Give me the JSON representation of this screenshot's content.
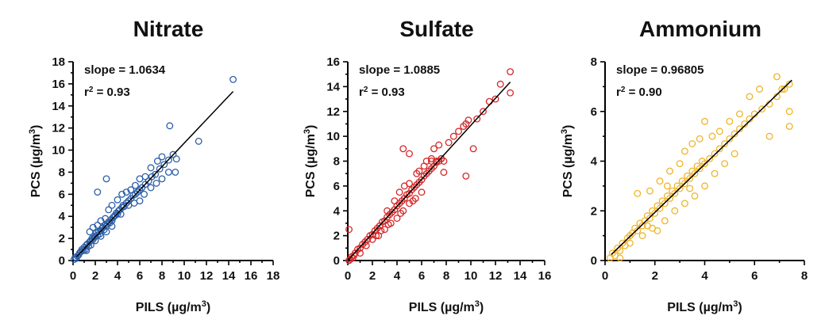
{
  "chart_data": [
    {
      "type": "scatter",
      "title": "Nitrate",
      "xlabel": "PILS (µg/m",
      "xlabel_sup": "3",
      "xlabel_close": ")",
      "ylabel": "PCS (µg/m",
      "ylabel_sup": "3",
      "ylabel_close": ")",
      "xlim": [
        0,
        18
      ],
      "ylim": [
        0,
        18
      ],
      "xticks": [
        0,
        2,
        4,
        6,
        8,
        10,
        12,
        14,
        16,
        18
      ],
      "yticks": [
        0,
        2,
        4,
        6,
        8,
        10,
        12,
        14,
        16,
        18
      ],
      "color": "#2d5fa8",
      "annotation": {
        "slope_text": "slope = 1.0634",
        "r2_prefix": "r",
        "r2_sup": "2",
        "r2_value": " = 0.93"
      },
      "fit": {
        "slope": 1.0634,
        "x_range": [
          0.3,
          14.4
        ]
      },
      "points": [
        [
          0.1,
          0.1
        ],
        [
          0.2,
          0.3
        ],
        [
          0.3,
          0.2
        ],
        [
          0.4,
          0.4
        ],
        [
          0.5,
          0.5
        ],
        [
          0.6,
          0.7
        ],
        [
          0.7,
          0.8
        ],
        [
          0.8,
          1.0
        ],
        [
          0.9,
          0.9
        ],
        [
          1.0,
          1.2
        ],
        [
          1.1,
          1.0
        ],
        [
          1.2,
          1.4
        ],
        [
          1.3,
          1.5
        ],
        [
          1.4,
          1.3
        ],
        [
          1.5,
          1.7
        ],
        [
          1.6,
          1.8
        ],
        [
          1.7,
          2.0
        ],
        [
          1.8,
          1.9
        ],
        [
          1.9,
          2.1
        ],
        [
          2.0,
          2.2
        ],
        [
          2.1,
          2.5
        ],
        [
          2.2,
          2.3
        ],
        [
          2.3,
          2.6
        ],
        [
          2.4,
          2.4
        ],
        [
          2.5,
          2.7
        ],
        [
          2.6,
          2.9
        ],
        [
          2.7,
          3.0
        ],
        [
          2.8,
          2.8
        ],
        [
          2.9,
          3.2
        ],
        [
          3.0,
          3.1
        ],
        [
          3.1,
          3.3
        ],
        [
          3.2,
          3.5
        ],
        [
          3.3,
          3.4
        ],
        [
          3.4,
          3.7
        ],
        [
          3.5,
          3.6
        ],
        [
          3.6,
          3.9
        ],
        [
          3.7,
          4.0
        ],
        [
          3.8,
          4.1
        ],
        [
          3.9,
          4.3
        ],
        [
          4.0,
          4.2
        ],
        [
          4.1,
          4.5
        ],
        [
          4.2,
          4.6
        ],
        [
          4.4,
          4.8
        ],
        [
          4.5,
          5.0
        ],
        [
          4.6,
          4.9
        ],
        [
          4.8,
          5.2
        ],
        [
          5.0,
          5.4
        ],
        [
          5.2,
          5.6
        ],
        [
          5.4,
          5.9
        ],
        [
          5.6,
          6.0
        ],
        [
          5.8,
          6.2
        ],
        [
          6.0,
          6.4
        ],
        [
          6.2,
          6.6
        ],
        [
          6.5,
          6.9
        ],
        [
          6.8,
          7.2
        ],
        [
          7.1,
          7.6
        ],
        [
          7.4,
          7.8
        ],
        [
          7.8,
          8.3
        ],
        [
          8.2,
          8.7
        ],
        [
          8.6,
          9.1
        ],
        [
          9.0,
          9.6
        ],
        [
          1.5,
          2.6
        ],
        [
          1.8,
          3.0
        ],
        [
          2.2,
          3.2
        ],
        [
          2.5,
          3.6
        ],
        [
          2.9,
          3.8
        ],
        [
          3.2,
          4.6
        ],
        [
          3.5,
          5.0
        ],
        [
          4.0,
          5.5
        ],
        [
          4.4,
          6.0
        ],
        [
          4.8,
          6.2
        ],
        [
          5.2,
          6.4
        ],
        [
          5.6,
          6.8
        ],
        [
          6.0,
          7.4
        ],
        [
          6.5,
          7.6
        ],
        [
          7.0,
          8.4
        ],
        [
          7.6,
          9.0
        ],
        [
          8.0,
          9.4
        ],
        [
          2.2,
          6.2
        ],
        [
          3.0,
          7.4
        ],
        [
          4.3,
          4.2
        ],
        [
          5.0,
          5.0
        ],
        [
          5.5,
          5.2
        ],
        [
          6.0,
          5.4
        ],
        [
          6.4,
          6.0
        ],
        [
          7.0,
          6.6
        ],
        [
          7.5,
          7.0
        ],
        [
          8.0,
          7.4
        ],
        [
          8.6,
          8.0
        ],
        [
          9.2,
          8.0
        ],
        [
          9.3,
          9.2
        ],
        [
          8.7,
          12.2
        ],
        [
          11.3,
          10.8
        ],
        [
          14.4,
          16.4
        ],
        [
          2.0,
          1.8
        ],
        [
          2.5,
          2.2
        ],
        [
          3.0,
          2.6
        ],
        [
          3.5,
          3.1
        ],
        [
          1.2,
          0.9
        ],
        [
          1.6,
          1.4
        ]
      ]
    },
    {
      "type": "scatter",
      "title": "Sulfate",
      "xlabel": "PILS (µg/m",
      "xlabel_sup": "3",
      "xlabel_close": ")",
      "ylabel": "PCS (µg/m",
      "ylabel_sup": "3",
      "ylabel_close": ")",
      "xlim": [
        0,
        16
      ],
      "ylim": [
        0,
        16
      ],
      "xticks": [
        0,
        2,
        4,
        6,
        8,
        10,
        12,
        14,
        16
      ],
      "yticks": [
        0,
        2,
        4,
        6,
        8,
        10,
        12,
        14,
        16
      ],
      "color": "#d62728",
      "annotation": {
        "slope_text": "slope = 1.0885",
        "r2_prefix": "r",
        "r2_sup": "2",
        "r2_value": " = 0.93"
      },
      "fit": {
        "slope": 1.0885,
        "x_range": [
          0.0,
          13.2
        ]
      },
      "points": [
        [
          0.1,
          0.0
        ],
        [
          0.2,
          0.1
        ],
        [
          0.3,
          0.3
        ],
        [
          0.5,
          0.4
        ],
        [
          0.6,
          0.6
        ],
        [
          0.8,
          0.9
        ],
        [
          1.0,
          1.0
        ],
        [
          1.2,
          1.3
        ],
        [
          1.4,
          1.5
        ],
        [
          1.6,
          1.7
        ],
        [
          1.8,
          2.0
        ],
        [
          2.0,
          2.1
        ],
        [
          2.2,
          2.4
        ],
        [
          2.4,
          2.6
        ],
        [
          2.6,
          2.8
        ],
        [
          2.8,
          3.1
        ],
        [
          3.0,
          3.2
        ],
        [
          3.2,
          3.5
        ],
        [
          3.4,
          3.7
        ],
        [
          3.6,
          3.9
        ],
        [
          3.8,
          4.1
        ],
        [
          4.0,
          4.4
        ],
        [
          4.2,
          4.6
        ],
        [
          4.4,
          4.8
        ],
        [
          4.6,
          5.0
        ],
        [
          4.8,
          5.3
        ],
        [
          5.0,
          5.4
        ],
        [
          5.2,
          5.7
        ],
        [
          5.4,
          5.9
        ],
        [
          5.6,
          6.1
        ],
        [
          5.8,
          6.3
        ],
        [
          6.0,
          6.5
        ],
        [
          6.2,
          6.8
        ],
        [
          6.4,
          7.0
        ],
        [
          6.6,
          7.2
        ],
        [
          6.8,
          7.4
        ],
        [
          7.0,
          7.6
        ],
        [
          7.2,
          7.9
        ],
        [
          7.4,
          8.0
        ],
        [
          7.6,
          8.2
        ],
        [
          7.8,
          8.0
        ],
        [
          2.5,
          2.0
        ],
        [
          3.0,
          2.5
        ],
        [
          3.5,
          3.0
        ],
        [
          4.0,
          3.4
        ],
        [
          4.5,
          4.0
        ],
        [
          5.0,
          4.6
        ],
        [
          5.5,
          5.0
        ],
        [
          6.0,
          5.5
        ],
        [
          3.2,
          4.0
        ],
        [
          3.8,
          4.8
        ],
        [
          4.2,
          5.5
        ],
        [
          4.6,
          6.0
        ],
        [
          5.0,
          6.2
        ],
        [
          5.6,
          7.0
        ],
        [
          6.2,
          7.6
        ],
        [
          6.8,
          8.2
        ],
        [
          7.0,
          9.0
        ],
        [
          7.4,
          9.3
        ],
        [
          4.5,
          9.0
        ],
        [
          5.0,
          8.6
        ],
        [
          5.8,
          7.2
        ],
        [
          6.4,
          8.0
        ],
        [
          6.8,
          8.0
        ],
        [
          7.2,
          8.0
        ],
        [
          7.6,
          8.2
        ],
        [
          7.8,
          7.1
        ],
        [
          8.2,
          9.5
        ],
        [
          8.6,
          10.0
        ],
        [
          9.0,
          10.4
        ],
        [
          9.4,
          10.8
        ],
        [
          9.6,
          11.0
        ],
        [
          9.8,
          11.3
        ],
        [
          10.2,
          9.0
        ],
        [
          9.6,
          6.8
        ],
        [
          10.5,
          11.4
        ],
        [
          11.0,
          12.0
        ],
        [
          11.5,
          12.8
        ],
        [
          12.0,
          13.0
        ],
        [
          12.4,
          14.2
        ],
        [
          13.2,
          15.2
        ],
        [
          13.2,
          13.5
        ],
        [
          0.1,
          2.5
        ],
        [
          1.0,
          0.6
        ],
        [
          1.5,
          1.2
        ],
        [
          2.0,
          1.7
        ],
        [
          2.3,
          2.0
        ],
        [
          2.7,
          2.4
        ],
        [
          3.3,
          2.9
        ],
        [
          4.3,
          3.8
        ],
        [
          5.3,
          4.8
        ],
        [
          0.4,
          0.2
        ]
      ]
    },
    {
      "type": "scatter",
      "title": "Ammonium",
      "xlabel": "PILS (µg/m",
      "xlabel_sup": "3",
      "xlabel_close": ")",
      "ylabel": "PCS (µg/m",
      "ylabel_sup": "3",
      "ylabel_close": ")",
      "xlim": [
        0,
        8
      ],
      "ylim": [
        0,
        8
      ],
      "xticks": [
        0,
        2,
        4,
        6,
        8
      ],
      "yticks": [
        0,
        2,
        4,
        6,
        8
      ],
      "color": "#f0b429",
      "annotation": {
        "slope_text": "slope = 0.96805",
        "r2_prefix": "r",
        "r2_sup": "2",
        "r2_value": " = 0.90"
      },
      "fit": {
        "slope": 0.96805,
        "x_range": [
          0.25,
          7.5
        ]
      },
      "points": [
        [
          0.2,
          0.1
        ],
        [
          0.3,
          0.3
        ],
        [
          0.4,
          0.2
        ],
        [
          0.5,
          0.5
        ],
        [
          0.6,
          0.4
        ],
        [
          0.6,
          0.1
        ],
        [
          0.7,
          0.7
        ],
        [
          0.8,
          0.6
        ],
        [
          0.9,
          0.9
        ],
        [
          1.0,
          1.0
        ],
        [
          1.1,
          1.1
        ],
        [
          1.2,
          1.3
        ],
        [
          1.3,
          1.2
        ],
        [
          1.4,
          1.5
        ],
        [
          1.5,
          1.4
        ],
        [
          1.6,
          1.6
        ],
        [
          1.7,
          1.8
        ],
        [
          1.8,
          1.7
        ],
        [
          1.9,
          2.0
        ],
        [
          2.0,
          1.9
        ],
        [
          2.1,
          2.2
        ],
        [
          2.2,
          2.1
        ],
        [
          2.3,
          2.4
        ],
        [
          2.4,
          2.3
        ],
        [
          2.5,
          2.6
        ],
        [
          2.6,
          2.5
        ],
        [
          2.7,
          2.8
        ],
        [
          2.8,
          2.7
        ],
        [
          2.9,
          3.0
        ],
        [
          3.0,
          2.9
        ],
        [
          3.1,
          3.2
        ],
        [
          3.2,
          3.1
        ],
        [
          3.3,
          3.4
        ],
        [
          3.4,
          3.3
        ],
        [
          3.5,
          3.6
        ],
        [
          3.6,
          3.5
        ],
        [
          3.7,
          3.8
        ],
        [
          3.8,
          3.7
        ],
        [
          3.9,
          4.0
        ],
        [
          4.0,
          3.9
        ],
        [
          4.2,
          4.1
        ],
        [
          4.4,
          4.3
        ],
        [
          4.6,
          4.5
        ],
        [
          4.8,
          4.7
        ],
        [
          5.0,
          4.9
        ],
        [
          5.2,
          5.1
        ],
        [
          5.4,
          5.3
        ],
        [
          5.6,
          5.5
        ],
        [
          5.8,
          5.7
        ],
        [
          6.0,
          5.9
        ],
        [
          6.3,
          6.1
        ],
        [
          6.6,
          6.3
        ],
        [
          6.9,
          6.6
        ],
        [
          7.2,
          6.9
        ],
        [
          1.3,
          2.7
        ],
        [
          1.8,
          2.8
        ],
        [
          2.2,
          3.2
        ],
        [
          2.6,
          3.6
        ],
        [
          3.0,
          3.9
        ],
        [
          3.2,
          4.4
        ],
        [
          3.5,
          4.7
        ],
        [
          3.8,
          4.9
        ],
        [
          4.0,
          5.6
        ],
        [
          4.3,
          5.0
        ],
        [
          4.6,
          5.2
        ],
        [
          5.0,
          5.6
        ],
        [
          5.4,
          5.9
        ],
        [
          5.8,
          6.6
        ],
        [
          6.2,
          6.9
        ],
        [
          6.9,
          7.4
        ],
        [
          7.1,
          6.9
        ],
        [
          7.4,
          7.1
        ],
        [
          7.4,
          6.0
        ],
        [
          7.4,
          5.4
        ],
        [
          6.6,
          5.0
        ],
        [
          2.4,
          1.6
        ],
        [
          2.8,
          2.0
        ],
        [
          3.2,
          2.3
        ],
        [
          3.6,
          2.6
        ],
        [
          4.0,
          3.0
        ],
        [
          4.4,
          3.5
        ],
        [
          4.8,
          3.9
        ],
        [
          5.2,
          4.3
        ],
        [
          1.5,
          1.0
        ],
        [
          1.9,
          1.3
        ],
        [
          2.1,
          1.2
        ],
        [
          1.0,
          0.7
        ],
        [
          1.7,
          1.4
        ],
        [
          2.5,
          3.0
        ],
        [
          3.4,
          2.9
        ]
      ]
    }
  ]
}
